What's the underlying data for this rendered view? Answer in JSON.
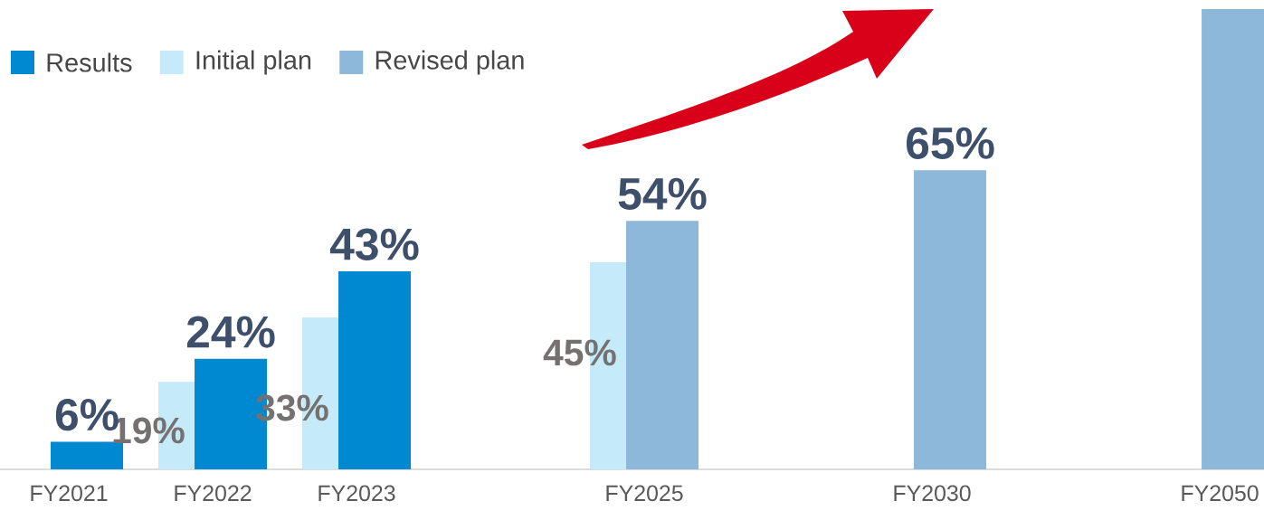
{
  "chart_data": {
    "type": "bar",
    "categories": [
      "FY2021",
      "FY2022",
      "FY2023",
      null,
      "FY2025",
      null,
      "FY2030",
      null,
      "FY2050"
    ],
    "series": [
      {
        "name": "Results",
        "color": "#0089d0",
        "values": [
          6,
          24,
          43,
          null,
          null,
          null,
          null,
          null,
          null
        ],
        "value_labels": [
          "6%",
          "24%",
          "43%",
          null,
          null,
          null,
          null,
          null,
          null
        ]
      },
      {
        "name": "Initial plan",
        "color": "#c5ebfb",
        "values": [
          null,
          19,
          33,
          null,
          45,
          null,
          null,
          null,
          null
        ],
        "value_labels": [
          null,
          "19%",
          "33%",
          null,
          "45%",
          null,
          null,
          null,
          null
        ]
      },
      {
        "name": "Revised plan",
        "color": "#8db8da",
        "values": [
          null,
          null,
          null,
          null,
          54,
          null,
          65,
          null,
          100
        ],
        "value_labels": [
          null,
          null,
          null,
          null,
          "54%",
          null,
          "65%",
          null,
          null
        ]
      }
    ],
    "legend": "top left"
  }
}
